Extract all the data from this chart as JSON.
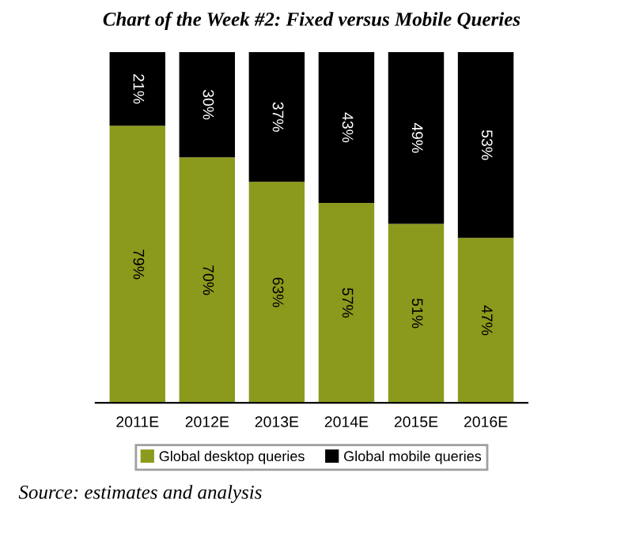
{
  "chart_data": {
    "type": "bar",
    "title": "Chart of the Week #2: Fixed versus Mobile Queries",
    "categories": [
      "2011E",
      "2012E",
      "2013E",
      "2014E",
      "2015E",
      "2016E"
    ],
    "stacked": true,
    "legend": "bottom",
    "grid": false,
    "series": [
      {
        "name": "Global desktop queries",
        "color": "#8b9a1c",
        "values": [
          79,
          70,
          63,
          57,
          51,
          47
        ],
        "value_labels": [
          "79%",
          "70%",
          "63%",
          "57%",
          "51%",
          "47%"
        ]
      },
      {
        "name": "Global mobile queries",
        "color": "#000000",
        "values": [
          21,
          30,
          37,
          43,
          49,
          53
        ],
        "value_labels": [
          "21%",
          "30%",
          "37%",
          "43%",
          "49%",
          "53%"
        ]
      }
    ],
    "annotations": [
      "Source: estimates and analysis"
    ]
  }
}
